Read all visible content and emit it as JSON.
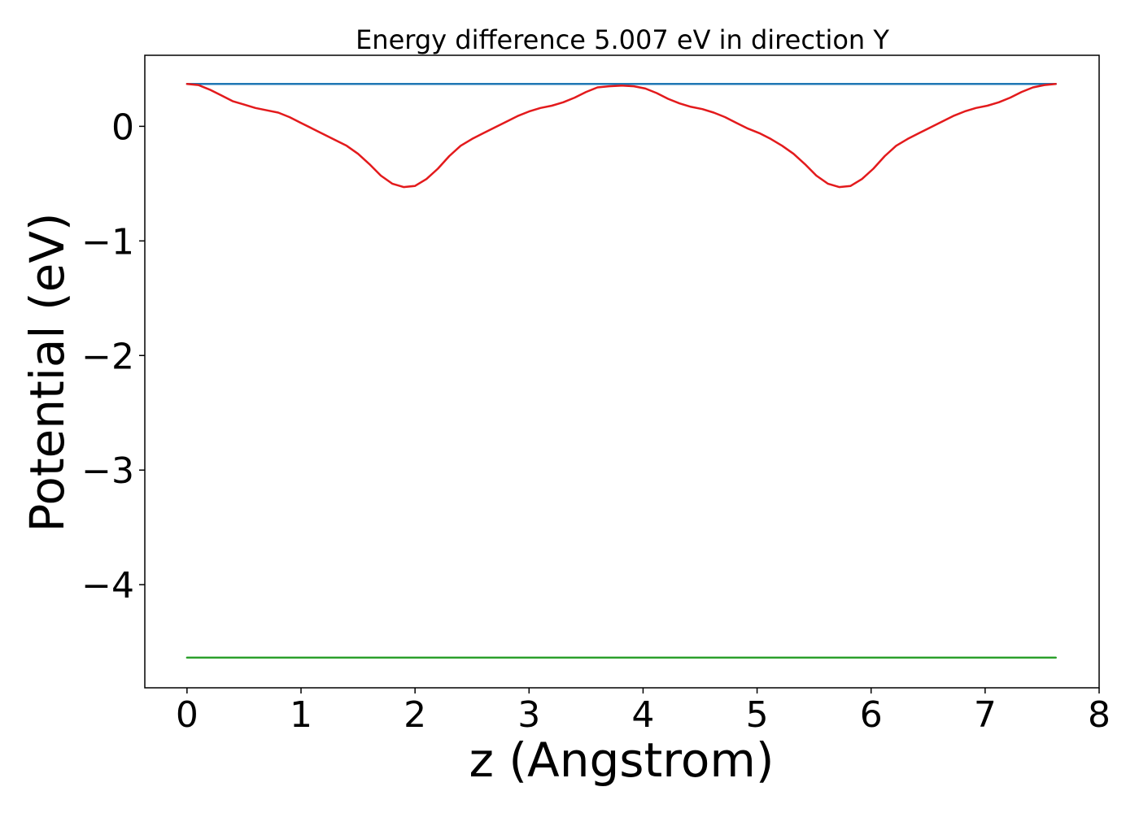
{
  "chart_data": {
    "type": "line",
    "title": "Energy difference 5.007 eV in direction Y",
    "xlabel": "z (Angstrom)",
    "ylabel": "Potential (eV)",
    "xlim": [
      -0.37,
      8.0
    ],
    "ylim": [
      -4.9,
      0.62
    ],
    "xticks": [
      0,
      1,
      2,
      3,
      4,
      5,
      6,
      7,
      8
    ],
    "xtick_labels": [
      "0",
      "1",
      "2",
      "3",
      "4",
      "5",
      "6",
      "7",
      "8"
    ],
    "yticks": [
      0,
      -1,
      -2,
      -3,
      -4
    ],
    "ytick_labels": [
      "0",
      "−1",
      "−2",
      "−3",
      "−4"
    ],
    "grid": false,
    "legend": "none",
    "series": [
      {
        "color": "#1f77b4",
        "x": [
          0,
          7.62
        ],
        "y": [
          0.37,
          0.37
        ]
      },
      {
        "color": "#2ca02c",
        "x": [
          0,
          7.62
        ],
        "y": [
          -4.637,
          -4.637
        ]
      },
      {
        "color": "#e31a1c",
        "x": [
          0,
          0.1,
          0.2,
          0.3,
          0.4,
          0.5,
          0.6,
          0.7,
          0.8,
          0.9,
          1.0,
          1.1,
          1.2,
          1.3,
          1.4,
          1.5,
          1.6,
          1.7,
          1.8,
          1.9,
          2.0,
          2.1,
          2.2,
          2.3,
          2.4,
          2.5,
          2.6,
          2.7,
          2.8,
          2.9,
          3.0,
          3.1,
          3.2,
          3.3,
          3.4,
          3.5,
          3.6,
          3.7,
          3.81,
          3.92,
          4.02,
          4.12,
          4.22,
          4.32,
          4.42,
          4.52,
          4.62,
          4.72,
          4.82,
          4.92,
          5.02,
          5.12,
          5.22,
          5.32,
          5.42,
          5.52,
          5.62,
          5.72,
          5.82,
          5.92,
          6.02,
          6.12,
          6.22,
          6.32,
          6.42,
          6.52,
          6.62,
          6.72,
          6.82,
          6.92,
          7.02,
          7.12,
          7.22,
          7.32,
          7.42,
          7.52,
          7.62
        ],
        "y": [
          0.37,
          0.36,
          0.32,
          0.27,
          0.22,
          0.19,
          0.16,
          0.14,
          0.12,
          0.08,
          0.03,
          -0.02,
          -0.07,
          -0.12,
          -0.17,
          -0.24,
          -0.33,
          -0.43,
          -0.5,
          -0.53,
          -0.52,
          -0.46,
          -0.37,
          -0.26,
          -0.17,
          -0.11,
          -0.06,
          -0.01,
          0.04,
          0.09,
          0.13,
          0.16,
          0.18,
          0.21,
          0.25,
          0.3,
          0.34,
          0.35,
          0.355,
          0.35,
          0.33,
          0.29,
          0.24,
          0.2,
          0.17,
          0.15,
          0.12,
          0.08,
          0.03,
          -0.02,
          -0.06,
          -0.11,
          -0.17,
          -0.24,
          -0.33,
          -0.43,
          -0.5,
          -0.53,
          -0.52,
          -0.46,
          -0.37,
          -0.26,
          -0.17,
          -0.11,
          -0.06,
          -0.01,
          0.04,
          0.09,
          0.13,
          0.16,
          0.18,
          0.21,
          0.25,
          0.3,
          0.34,
          0.36,
          0.37
        ]
      }
    ]
  }
}
